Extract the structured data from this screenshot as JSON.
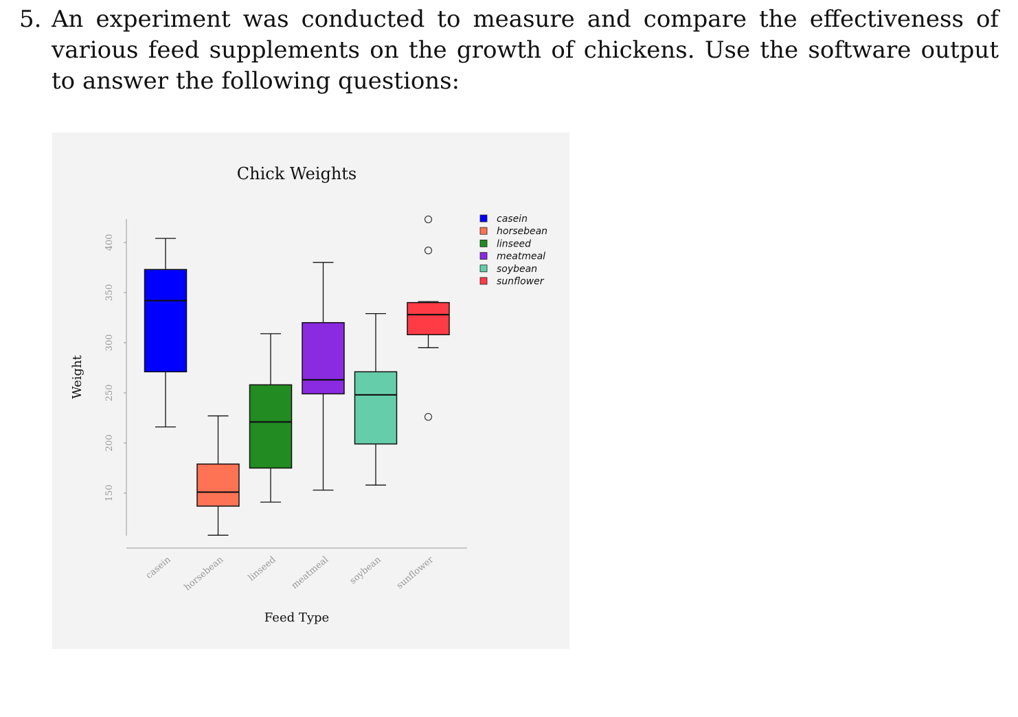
{
  "question": {
    "number": "5.",
    "text": "An experiment was conducted to measure and compare the effectiveness of various feed supplements on the growth of chickens. Use the software output to answer the following questions:"
  },
  "chart_data": {
    "type": "boxplot",
    "title": "Chick Weights",
    "xlabel": "Feed Type",
    "ylabel": "Weight",
    "ylim": [
      108,
      420
    ],
    "yticks": [
      150,
      200,
      250,
      300,
      350,
      400
    ],
    "categories": [
      "casein",
      "horsebean",
      "linseed",
      "meatmeal",
      "soybean",
      "sunflower"
    ],
    "colors": [
      "#0000ff",
      "#ff7355",
      "#228b22",
      "#8a2be2",
      "#66cdaa",
      "#ff3b46"
    ],
    "boxes": [
      {
        "name": "casein",
        "whisker_low": 216,
        "q1": 271,
        "median": 342,
        "q3": 373,
        "whisker_high": 404,
        "outliers": []
      },
      {
        "name": "horsebean",
        "whisker_low": 108,
        "q1": 137,
        "median": 151,
        "q3": 179,
        "whisker_high": 227,
        "outliers": []
      },
      {
        "name": "linseed",
        "whisker_low": 141,
        "q1": 175,
        "median": 221,
        "q3": 258,
        "whisker_high": 309,
        "outliers": []
      },
      {
        "name": "meatmeal",
        "whisker_low": 153,
        "q1": 249,
        "median": 263,
        "q3": 320,
        "whisker_high": 380,
        "outliers": []
      },
      {
        "name": "soybean",
        "whisker_low": 158,
        "q1": 199,
        "median": 248,
        "q3": 271,
        "whisker_high": 329,
        "outliers": []
      },
      {
        "name": "sunflower",
        "whisker_low": 295,
        "q1": 308,
        "median": 328,
        "q3": 340,
        "whisker_high": 341,
        "outliers": [
          423,
          392,
          226
        ]
      }
    ],
    "legend": {
      "position": "top-right",
      "entries": [
        "casein",
        "horsebean",
        "linseed",
        "meatmeal",
        "soybean",
        "sunflower"
      ]
    }
  }
}
